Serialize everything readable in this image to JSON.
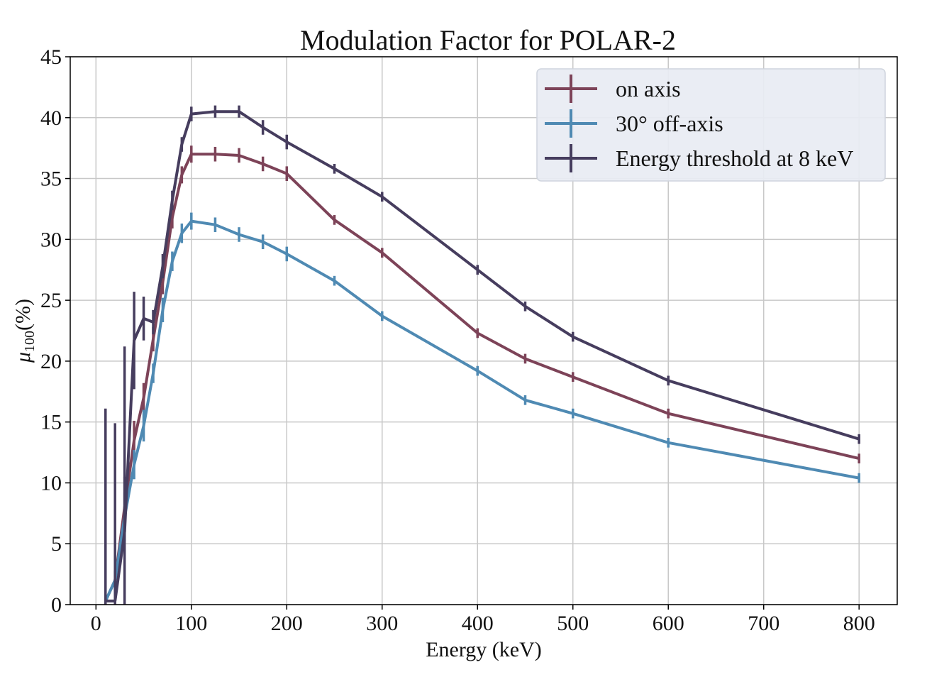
{
  "chart_data": {
    "type": "line",
    "title": "Modulation Factor for POLAR-2",
    "xlabel": "Energy (keV)",
    "ylabel_main": "μ",
    "ylabel_sub": "100",
    "ylabel_suffix": "(%)",
    "xlim": [
      -27,
      840
    ],
    "ylim": [
      0,
      45
    ],
    "xticks": [
      0,
      100,
      200,
      300,
      400,
      500,
      600,
      700,
      800
    ],
    "yticks": [
      0,
      5,
      10,
      15,
      20,
      25,
      30,
      35,
      40,
      45
    ],
    "grid": true,
    "legend_position": "top-right",
    "series": [
      {
        "name": "on axis",
        "color": "#7d4358",
        "points": [
          [
            10,
            0.3,
            0.5
          ],
          [
            20,
            2.0,
            0.8
          ],
          [
            30,
            8.0,
            2.5
          ],
          [
            40,
            13.5,
            1.6
          ],
          [
            50,
            17.0,
            1.2
          ],
          [
            60,
            21.8,
            1.0
          ],
          [
            70,
            26.5,
            1.0
          ],
          [
            80,
            31.8,
            0.9
          ],
          [
            90,
            35.3,
            0.7
          ],
          [
            100,
            37.0,
            0.7
          ],
          [
            125,
            37.0,
            0.6
          ],
          [
            150,
            36.9,
            0.6
          ],
          [
            175,
            36.2,
            0.6
          ],
          [
            200,
            35.4,
            0.6
          ],
          [
            250,
            31.6,
            0.4
          ],
          [
            300,
            28.9,
            0.4
          ],
          [
            400,
            22.3,
            0.4
          ],
          [
            450,
            20.2,
            0.4
          ],
          [
            500,
            18.7,
            0.4
          ],
          [
            600,
            15.7,
            0.4
          ],
          [
            800,
            12.0,
            0.4
          ]
        ]
      },
      {
        "name": "30° off-axis",
        "color": "#4f8ab3",
        "points": [
          [
            10,
            0.3,
            0.5
          ],
          [
            20,
            2.0,
            0.8
          ],
          [
            30,
            7.2,
            2.0
          ],
          [
            40,
            11.5,
            1.2
          ],
          [
            50,
            14.7,
            1.3
          ],
          [
            60,
            19.0,
            0.8
          ],
          [
            70,
            24.2,
            1.0
          ],
          [
            80,
            28.2,
            0.8
          ],
          [
            90,
            30.5,
            0.8
          ],
          [
            100,
            31.5,
            0.7
          ],
          [
            125,
            31.2,
            0.6
          ],
          [
            150,
            30.4,
            0.6
          ],
          [
            175,
            29.8,
            0.6
          ],
          [
            200,
            28.8,
            0.6
          ],
          [
            250,
            26.6,
            0.4
          ],
          [
            300,
            23.7,
            0.4
          ],
          [
            400,
            19.2,
            0.4
          ],
          [
            450,
            16.8,
            0.4
          ],
          [
            500,
            15.7,
            0.4
          ],
          [
            600,
            13.3,
            0.4
          ],
          [
            800,
            10.4,
            0.4
          ]
        ]
      },
      {
        "name": "Energy threshold at 8 keV",
        "color": "#463d5e",
        "points": [
          [
            10,
            0.3,
            15.8
          ],
          [
            20,
            0.3,
            14.6
          ],
          [
            30,
            6.0,
            15.2
          ],
          [
            40,
            21.7,
            4.0
          ],
          [
            50,
            23.5,
            1.8
          ],
          [
            60,
            23.2,
            1.0
          ],
          [
            70,
            27.8,
            1.0
          ],
          [
            80,
            33.2,
            0.8
          ],
          [
            90,
            37.8,
            0.6
          ],
          [
            100,
            40.3,
            0.6
          ],
          [
            125,
            40.5,
            0.5
          ],
          [
            150,
            40.5,
            0.5
          ],
          [
            175,
            39.2,
            0.6
          ],
          [
            200,
            38.0,
            0.6
          ],
          [
            250,
            35.8,
            0.4
          ],
          [
            300,
            33.5,
            0.4
          ],
          [
            400,
            27.5,
            0.4
          ],
          [
            450,
            24.5,
            0.4
          ],
          [
            500,
            22.0,
            0.4
          ],
          [
            600,
            18.4,
            0.4
          ],
          [
            800,
            13.6,
            0.4
          ]
        ]
      }
    ]
  }
}
